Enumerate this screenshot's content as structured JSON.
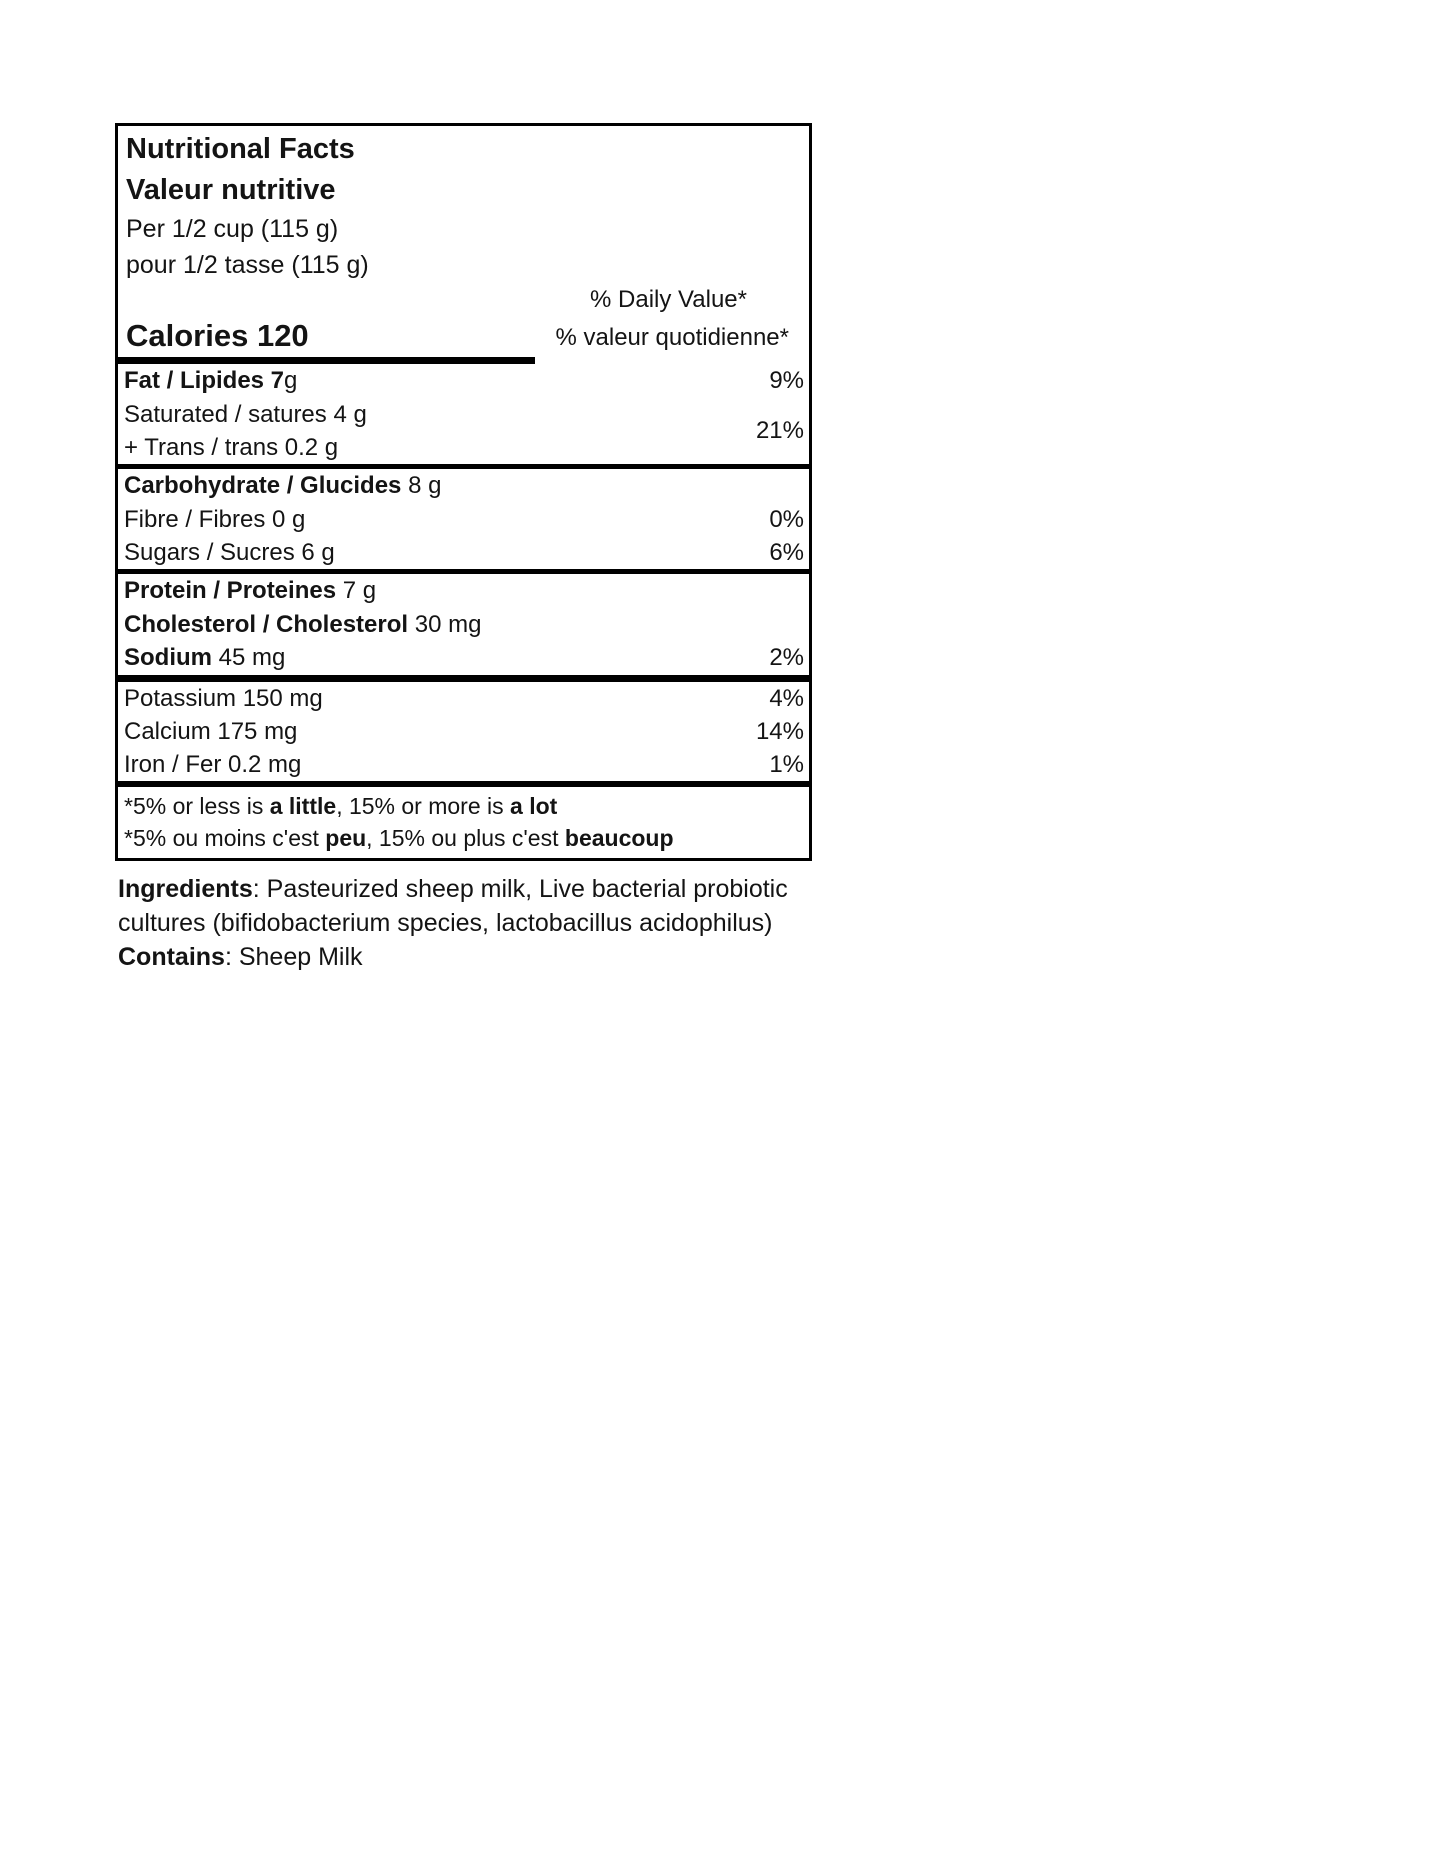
{
  "page": {
    "background": "#ffffff",
    "text_color": "#141414",
    "border_color": "#000000"
  },
  "nutrition_label": {
    "title_en": "Nutritional Facts",
    "title_fr": "Valeur nutritive",
    "serving_en": "Per 1/2 cup (115 g)",
    "serving_fr": "pour 1/2 tasse (115 g)",
    "daily_value_en": "% Daily Value*",
    "daily_value_fr": "% valeur quotidienne*",
    "calories": "Calories 120",
    "rows": {
      "fat": {
        "bold": "Fat / Lipides 7",
        "rest": "g",
        "pct": "9%"
      },
      "saturated": {
        "rest": "Saturated / satures 4 g"
      },
      "trans": {
        "rest": "+ Trans / trans 0.2 g"
      },
      "saturated_trans_pct": "21%",
      "carbohydrate": {
        "bold": "Carbohydrate / Glucides",
        "rest": " 8 g",
        "pct": ""
      },
      "fibre": {
        "rest": "Fibre / Fibres 0 g",
        "pct": "0%"
      },
      "sugars": {
        "rest": "Sugars / Sucres 6 g",
        "pct": "6%"
      },
      "protein": {
        "bold": "Protein / Proteines",
        "rest": " 7 g",
        "pct": ""
      },
      "cholesterol": {
        "bold": "Cholesterol / Cholesterol",
        "rest": " 30 mg",
        "pct": ""
      },
      "sodium": {
        "bold": "Sodium",
        "rest": " 45 mg",
        "pct": "2%"
      },
      "potassium": {
        "rest": "Potassium 150 mg",
        "pct": "4%"
      },
      "calcium": {
        "rest": "Calcium 175 mg",
        "pct": "14%"
      },
      "iron": {
        "rest": "Iron / Fer 0.2 mg",
        "pct": "1%"
      }
    },
    "footnote": {
      "en_1": "*5% or less is ",
      "en_2": "a little",
      "en_3": ", 15% or more is ",
      "en_4": "a lot",
      "fr_1": "*5% ou moins c'est ",
      "fr_2": "peu",
      "fr_3": ", 15% ou plus c'est ",
      "fr_4": "beaucoup"
    }
  },
  "ingredients": {
    "label": "Ingredients",
    "line1_rest": ": Pasteurized sheep milk, Live bacterial probiotic",
    "line2": "cultures (bifidobacterium species, lactobacillus acidophilus)",
    "contains_label": "Contains",
    "contains_rest": ": Sheep Milk"
  }
}
